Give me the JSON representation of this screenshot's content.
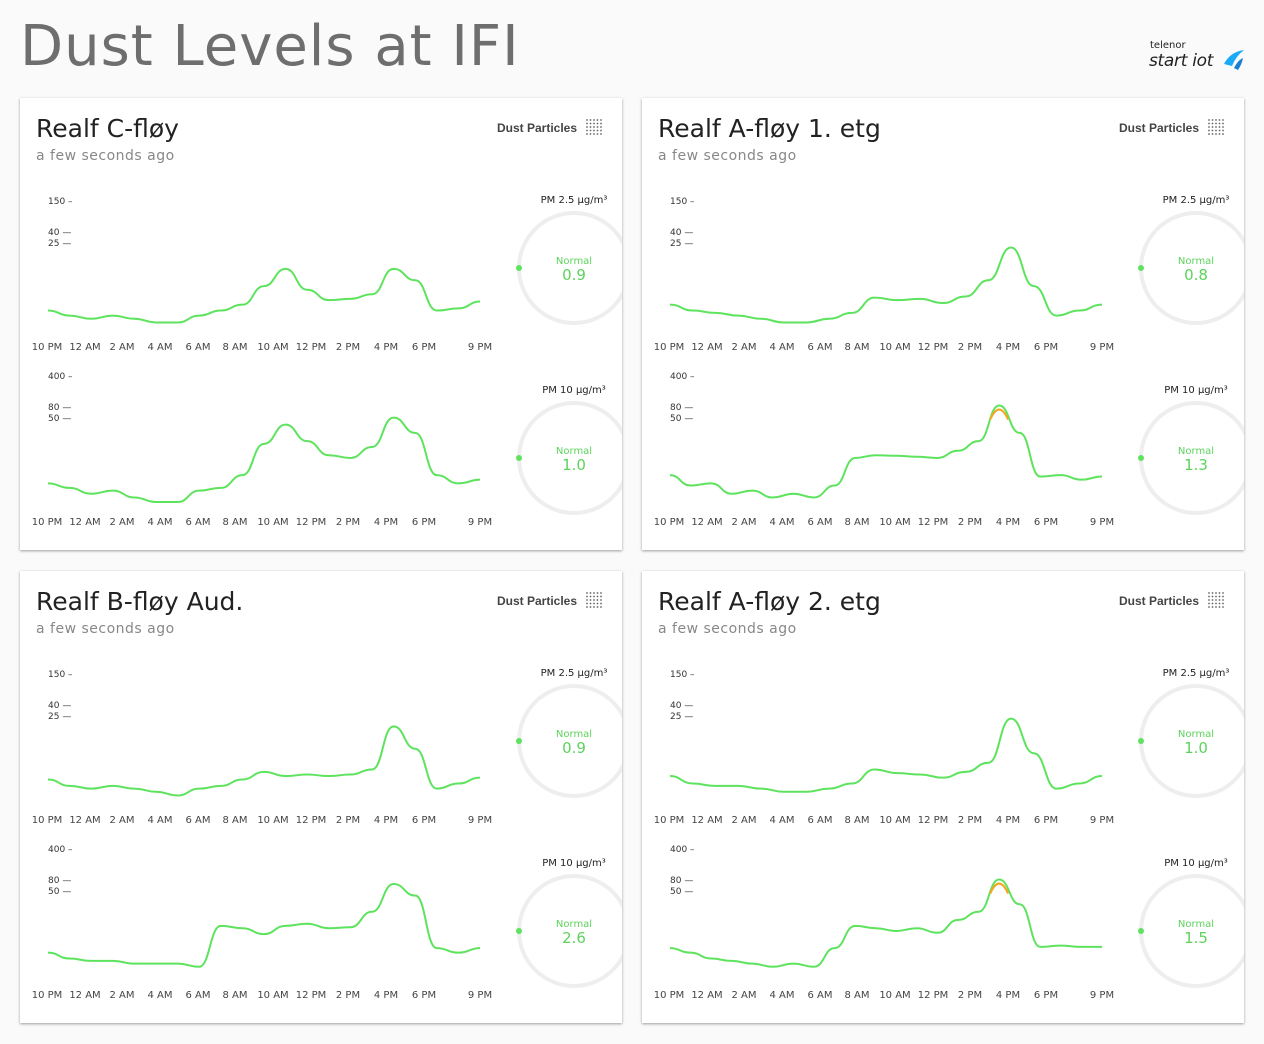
{
  "page": {
    "title": "Dust Levels at IFI",
    "logo_small": "telenor",
    "logo_big": "start iot"
  },
  "colors": {
    "normal": "#5ee35e",
    "elevated": "#f5a623",
    "high": "#d0021b",
    "gauge_track": "#eeeeee"
  },
  "x_ticks": [
    "10 PM",
    "12 AM",
    "2 AM",
    "4 AM",
    "6 AM",
    "8 AM",
    "10 AM",
    "12 PM",
    "2 PM",
    "4 PM",
    "6 PM",
    "9 PM"
  ],
  "pm25_axis": [
    "150 –",
    "40 —",
    "25 —"
  ],
  "pm10_axis": [
    "400 –",
    "80 —",
    "50 —"
  ],
  "cards": [
    {
      "title": "Realf C-fløy",
      "updated": "a few seconds ago",
      "tag": "Dust Particles",
      "pm25": {
        "label": "PM 2.5 µg/m³",
        "status": "Normal",
        "value": "0.9",
        "series": [
          0.9,
          0.7,
          0.6,
          0.7,
          0.6,
          0.5,
          0.5,
          0.7,
          0.9,
          1.2,
          3.0,
          7.0,
          2.5,
          1.5,
          1.6,
          2.0,
          7.0,
          4.0,
          0.9,
          1.0,
          1.4
        ]
      },
      "pm10": {
        "label": "PM 10 µg/m³",
        "status": "Normal",
        "value": "1.0",
        "series": [
          1.0,
          0.8,
          0.6,
          0.7,
          0.5,
          0.4,
          0.4,
          0.7,
          0.8,
          1.5,
          7.0,
          18.0,
          8.0,
          4.0,
          3.5,
          6.0,
          27.0,
          12.0,
          1.5,
          1.0,
          1.2
        ]
      }
    },
    {
      "title": "Realf A-fløy 1. etg",
      "updated": "a few seconds ago",
      "tag": "Dust Particles",
      "pm25": {
        "label": "PM 2.5 µg/m³",
        "status": "Normal",
        "value": "0.8",
        "series": [
          1.2,
          0.9,
          0.8,
          0.7,
          0.6,
          0.5,
          0.5,
          0.6,
          0.8,
          1.7,
          1.5,
          1.6,
          1.3,
          1.8,
          4.0,
          20.0,
          3.0,
          0.7,
          0.9,
          1.2
        ]
      },
      "pm10": {
        "label": "PM 10 µg/m³",
        "status": "Normal",
        "value": "1.3",
        "series": [
          1.5,
          0.9,
          1.0,
          0.6,
          0.7,
          0.5,
          0.6,
          0.5,
          0.9,
          3.5,
          4.0,
          3.9,
          3.7,
          3.5,
          5.0,
          8.0,
          95.0,
          12.0,
          1.4,
          1.5,
          1.2,
          1.4
        ]
      }
    },
    {
      "title": "Realf B-fløy Aud.",
      "updated": "a few seconds ago",
      "tag": "Dust Particles",
      "pm25": {
        "label": "PM 2.5 µg/m³",
        "status": "Normal",
        "value": "0.9",
        "series": [
          1.1,
          0.8,
          0.7,
          0.8,
          0.7,
          0.6,
          0.5,
          0.7,
          0.8,
          1.1,
          1.6,
          1.3,
          1.4,
          1.3,
          1.4,
          1.8,
          15.0,
          5.0,
          0.7,
          0.9,
          1.2
        ]
      },
      "pm10": {
        "label": "PM 10 µg/m³",
        "status": "Normal",
        "value": "2.6",
        "series": [
          1.2,
          0.9,
          0.8,
          0.8,
          0.7,
          0.7,
          0.7,
          0.6,
          4.5,
          4.0,
          3.0,
          4.5,
          5.0,
          4.0,
          4.2,
          9.0,
          60.0,
          20.0,
          1.5,
          1.2,
          1.5
        ]
      }
    },
    {
      "title": "Realf A-fløy 2. etg",
      "updated": "a few seconds ago",
      "tag": "Dust Particles",
      "pm25": {
        "label": "PM 2.5 µg/m³",
        "status": "Normal",
        "value": "1.0",
        "series": [
          1.3,
          0.9,
          0.8,
          0.8,
          0.7,
          0.6,
          0.6,
          0.7,
          0.9,
          1.8,
          1.5,
          1.4,
          1.2,
          1.6,
          2.5,
          22.0,
          4.0,
          0.7,
          0.9,
          1.3
        ]
      },
      "pm10": {
        "label": "PM 10 µg/m³",
        "status": "Normal",
        "value": "1.5",
        "series": [
          1.5,
          1.2,
          0.9,
          0.8,
          0.7,
          0.6,
          0.7,
          0.6,
          1.5,
          4.5,
          4.0,
          3.5,
          4.0,
          3.2,
          6.0,
          9.0,
          85.0,
          13.0,
          1.6,
          1.7,
          1.6,
          1.6
        ]
      }
    }
  ]
}
